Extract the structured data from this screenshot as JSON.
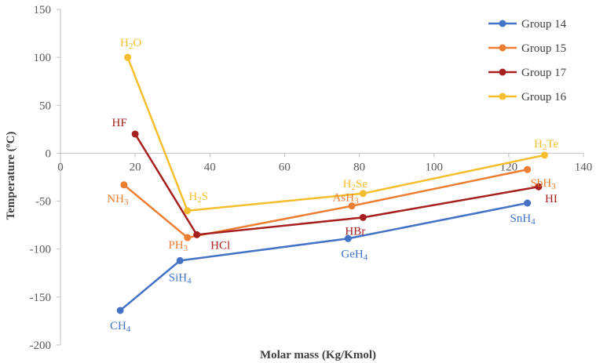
{
  "chart_data": {
    "type": "line",
    "xlabel": "Molar mass (Kg/Kmol)",
    "ylabel": "Temperature (ºC)",
    "xlim": [
      0,
      140
    ],
    "ylim": [
      -200,
      150
    ],
    "x_ticks": [
      "0",
      "20",
      "40",
      "60",
      "80",
      "100",
      "120",
      "140"
    ],
    "y_ticks": [
      "150",
      "100",
      "50",
      "0",
      "-50",
      "-100",
      "-150",
      "-200"
    ],
    "grid": false,
    "legend_position": "top-right",
    "legend_order": [
      "Group 14",
      "Group 15",
      "Group 17",
      "Group 16"
    ],
    "series": [
      {
        "name": "Group 14",
        "color": "#4472C4",
        "points": [
          {
            "x": 16,
            "y": -164,
            "label": "CH4",
            "label_base": "CH",
            "label_sub": "4"
          },
          {
            "x": 32,
            "y": -112,
            "label": "SiH4",
            "label_base": "SiH",
            "label_sub": "4"
          },
          {
            "x": 77,
            "y": -89,
            "label": "GeH4",
            "label_base": "GeH",
            "label_sub": "4"
          },
          {
            "x": 125,
            "y": -52,
            "label": "SnH4",
            "label_base": "SnH",
            "label_sub": "4"
          }
        ]
      },
      {
        "name": "Group 15",
        "color": "#ED7D31",
        "points": [
          {
            "x": 17,
            "y": -33,
            "label": "NH3",
            "label_base": "NH",
            "label_sub": "3"
          },
          {
            "x": 34,
            "y": -88,
            "label": "PH3",
            "label_base": "PH",
            "label_sub": "3"
          },
          {
            "x": 78,
            "y": -55,
            "label": "AsH3",
            "label_base": "AsH",
            "label_sub": "3"
          },
          {
            "x": 125,
            "y": -17,
            "label": "SbH3",
            "label_base": "SbH",
            "label_sub": "3"
          }
        ]
      },
      {
        "name": "Group 17",
        "color": "#A5201E",
        "points": [
          {
            "x": 20,
            "y": 20,
            "label": "HF"
          },
          {
            "x": 36.5,
            "y": -85,
            "label": "HCl"
          },
          {
            "x": 81,
            "y": -67,
            "label": "HBr"
          },
          {
            "x": 128,
            "y": -35,
            "label": "HI"
          }
        ]
      },
      {
        "name": "Group 16",
        "color": "#F5BE2E",
        "points": [
          {
            "x": 18,
            "y": 100,
            "label": "H2O",
            "label_base": "H",
            "label_sub": "2",
            "label_rest": "O"
          },
          {
            "x": 34,
            "y": -60,
            "label": "H2S",
            "label_base": "H",
            "label_sub": "2",
            "label_rest": "S"
          },
          {
            "x": 81,
            "y": -42,
            "label": "H2Se",
            "label_base": "H",
            "label_sub": "2",
            "label_rest": "Se"
          },
          {
            "x": 129.6,
            "y": -2,
            "label": "H2Te",
            "label_base": "H",
            "label_sub": "2",
            "label_rest": "Te"
          }
        ]
      }
    ]
  }
}
